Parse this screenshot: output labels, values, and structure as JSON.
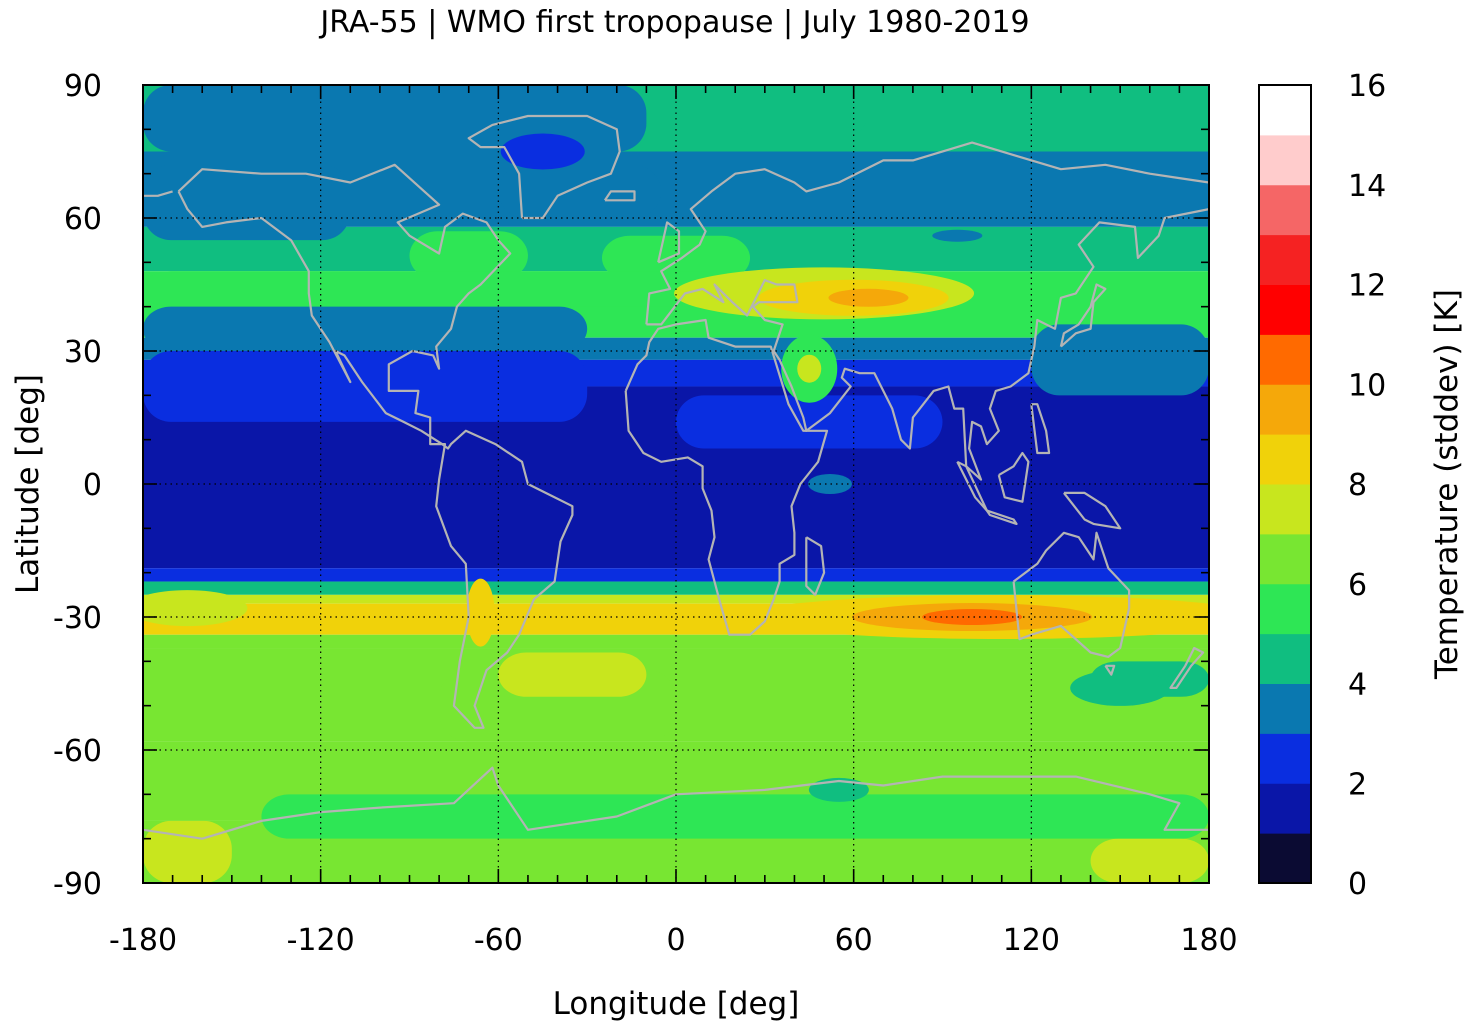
{
  "figure": {
    "title": "JRA-55 | WMO first tropopause | July 1980-2019"
  },
  "map_data": {
    "projection": "equirectangular",
    "extent": {
      "lon": [
        -180,
        180
      ],
      "lat": [
        -90,
        90
      ]
    },
    "xlabel": "Longitude [deg]",
    "ylabel": "Latitude [deg]",
    "xticks": [
      -180,
      -120,
      -60,
      0,
      60,
      120,
      180
    ],
    "yticks": [
      90,
      60,
      30,
      0,
      -30,
      -60,
      -90
    ],
    "grid": true,
    "coastline_color": "#b4b4b4",
    "variable": "Temperature standard deviation at WMO first tropopause",
    "field_bands": [
      {
        "lat": [
          75,
          90
        ],
        "level": "4-5"
      },
      {
        "lat": [
          58,
          75
        ],
        "level": "4-5"
      },
      {
        "lat": [
          45,
          58
        ],
        "level": "5-6"
      },
      {
        "lat": [
          30,
          45
        ],
        "level": "5-6"
      },
      {
        "lat": [
          20,
          30
        ],
        "level": "2-3"
      },
      {
        "lat": [
          -20,
          20
        ],
        "level": "1-2"
      },
      {
        "lat": [
          -25,
          -20
        ],
        "level": "2-4"
      },
      {
        "lat": [
          -35,
          -25
        ],
        "level": "7-8"
      },
      {
        "lat": [
          -55,
          -35
        ],
        "level": "6-7"
      },
      {
        "lat": [
          -75,
          -55
        ],
        "level": "6-7"
      },
      {
        "lat": [
          -90,
          -75
        ],
        "level": "6-7"
      }
    ],
    "highlights": [
      {
        "region": "Tibetan Plateau / Central Asia",
        "lon": [
          30,
          110
        ],
        "lat": [
          38,
          48
        ],
        "level": "8-10"
      },
      {
        "region": "Southern subtropical jet (Indian Ocean)",
        "lon": [
          40,
          170
        ],
        "lat": [
          -33,
          -26
        ],
        "level": "9-11"
      },
      {
        "region": "Arabian Peninsula",
        "lon": [
          38,
          50
        ],
        "lat": [
          20,
          30
        ],
        "level": "5-7"
      },
      {
        "region": "Greenland",
        "lon": [
          -50,
          -35
        ],
        "lat": [
          72,
          80
        ],
        "level": "2-3"
      }
    ]
  },
  "colorbar": {
    "label": "Temperature (stddev) [K]",
    "range": [
      0,
      16
    ],
    "step": 1,
    "tick_labels": [
      "0",
      "2",
      "4",
      "6",
      "8",
      "10",
      "12",
      "14",
      "16"
    ],
    "colors": [
      "#0b0b33",
      "#0a16a8",
      "#0a2ee0",
      "#0a78b0",
      "#10be80",
      "#2ee655",
      "#78e632",
      "#c8e61e",
      "#f0d20a",
      "#f5a80a",
      "#ff6a00",
      "#ff0000",
      "#f52222",
      "#f56666",
      "#ffcccc",
      "#ffffff"
    ]
  }
}
